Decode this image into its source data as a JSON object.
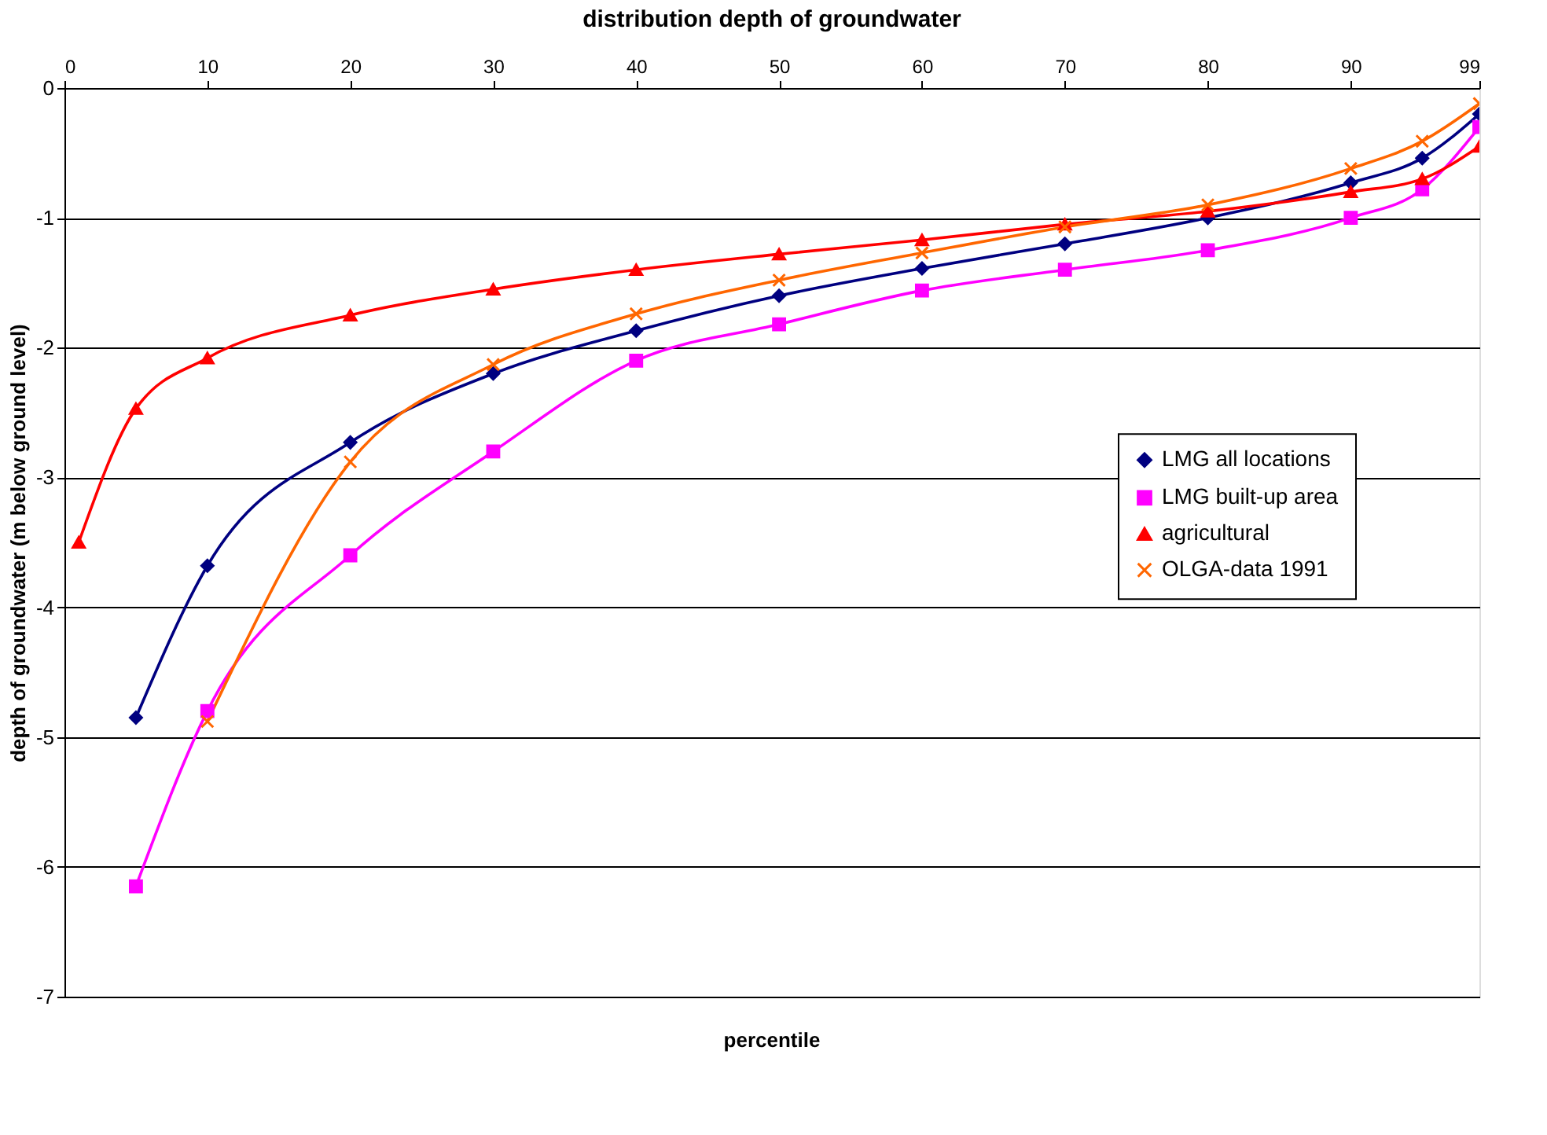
{
  "chart_data": {
    "type": "line",
    "title": "distribution depth of groundwater",
    "xlabel": "percentile",
    "ylabel": "depth of groundwater (m below ground level)",
    "xlim": [
      0,
      99
    ],
    "xticks": [
      0,
      10,
      20,
      30,
      40,
      50,
      60,
      70,
      80,
      90,
      99
    ],
    "ylim": [
      -7,
      0
    ],
    "yticks": [
      -7,
      -6,
      -5,
      -4,
      -3,
      -2,
      -1,
      0
    ],
    "grid": "y",
    "legend": "right",
    "series": [
      {
        "name": "LMG all locations",
        "color": "#000080",
        "marker": "diamond",
        "x": [
          5,
          10,
          20,
          30,
          40,
          50,
          60,
          70,
          80,
          90,
          95,
          99
        ],
        "values": [
          -4.85,
          -3.68,
          -2.73,
          -2.2,
          -1.87,
          -1.6,
          -1.39,
          -1.2,
          -1.0,
          -0.73,
          -0.54,
          -0.2
        ]
      },
      {
        "name": "LMG built-up area",
        "color": "#ff00ff",
        "marker": "square",
        "x": [
          5,
          10,
          20,
          30,
          40,
          50,
          60,
          70,
          80,
          90,
          95,
          99
        ],
        "values": [
          -6.15,
          -4.8,
          -3.6,
          -2.8,
          -2.1,
          -1.82,
          -1.56,
          -1.4,
          -1.25,
          -1.0,
          -0.78,
          -0.3
        ]
      },
      {
        "name": "agricultural",
        "color": "#ff0000",
        "marker": "triangle",
        "x": [
          1,
          5,
          10,
          20,
          30,
          40,
          50,
          60,
          70,
          80,
          90,
          95,
          99
        ],
        "values": [
          -3.5,
          -2.47,
          -2.08,
          -1.75,
          -1.55,
          -1.4,
          -1.28,
          -1.17,
          -1.05,
          -0.95,
          -0.8,
          -0.7,
          -0.45
        ]
      },
      {
        "name": "OLGA-data 1991",
        "color": "#ff6600",
        "marker": "cross",
        "x": [
          10,
          20,
          30,
          40,
          50,
          60,
          70,
          80,
          90,
          95,
          99
        ],
        "values": [
          -4.88,
          -2.88,
          -2.13,
          -1.74,
          -1.48,
          -1.27,
          -1.07,
          -0.9,
          -0.62,
          -0.41,
          -0.12
        ]
      }
    ]
  }
}
